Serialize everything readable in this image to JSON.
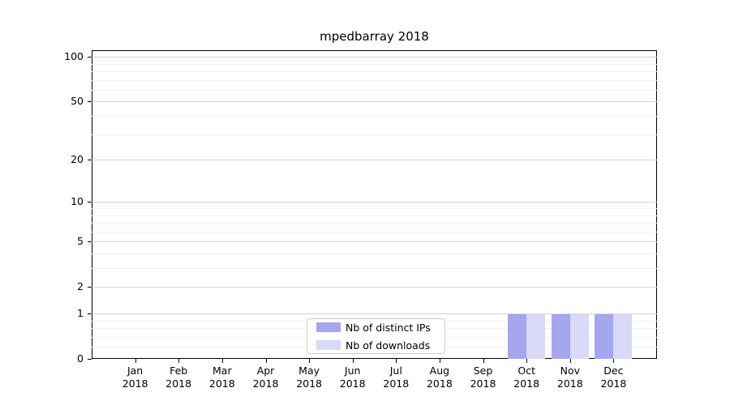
{
  "chart_data": {
    "type": "bar",
    "title": "mpedbarray 2018",
    "yscale": "symlog-log1p",
    "ylim": [
      0,
      110
    ],
    "grid": "on",
    "legend_position": "lower center",
    "yticks": [
      {
        "value": 0,
        "label": "0"
      },
      {
        "value": 1,
        "label": "1"
      },
      {
        "value": 2,
        "label": "2"
      },
      {
        "value": 5,
        "label": "5"
      },
      {
        "value": 10,
        "label": "10"
      },
      {
        "value": 20,
        "label": "20"
      },
      {
        "value": 50,
        "label": "50"
      },
      {
        "value": 100,
        "label": "100"
      }
    ],
    "minor_yticks": [
      0.2,
      0.4,
      0.6,
      0.8,
      3,
      4,
      6,
      7,
      8,
      9,
      30,
      40,
      60,
      70,
      80,
      90
    ],
    "x_tick_labels": [
      {
        "line1": "Jan",
        "line2": "2018"
      },
      {
        "line1": "Feb",
        "line2": "2018"
      },
      {
        "line1": "Mar",
        "line2": "2018"
      },
      {
        "line1": "Apr",
        "line2": "2018"
      },
      {
        "line1": "May",
        "line2": "2018"
      },
      {
        "line1": "Jun",
        "line2": "2018"
      },
      {
        "line1": "Jul",
        "line2": "2018"
      },
      {
        "line1": "Aug",
        "line2": "2018"
      },
      {
        "line1": "Sep",
        "line2": "2018"
      },
      {
        "line1": "Oct",
        "line2": "2018"
      },
      {
        "line1": "Nov",
        "line2": "2018"
      },
      {
        "line1": "Dec",
        "line2": "2018"
      }
    ],
    "series": [
      {
        "name": "Nb of distinct IPs",
        "color": "#a5a5f0",
        "values": [
          0,
          0,
          0,
          0,
          0,
          0,
          0,
          0,
          0,
          1,
          1,
          1
        ]
      },
      {
        "name": "Nb of downloads",
        "color": "#d9d9f8",
        "values": [
          0,
          0,
          0,
          0,
          0,
          0,
          0,
          0,
          0,
          1,
          1,
          1
        ]
      }
    ]
  }
}
